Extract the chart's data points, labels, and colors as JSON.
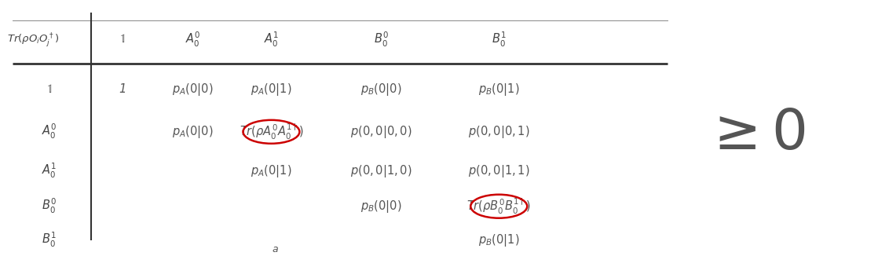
{
  "bg_color": "#ffffff",
  "text_color": "#555555",
  "header_color": "#444444",
  "red_circle_color": "#cc0000",
  "geq_color": "#555555",
  "col_header": [
    "$\\mathbb{1}$",
    "$A_0^0$",
    "$A_0^1$",
    "$B_0^0$",
    "$B_0^1$"
  ],
  "row_header": [
    "$\\mathbb{1}$",
    "$A_0^0$",
    "$A_0^1$",
    "$B_0^0$",
    "$B_0^1$"
  ],
  "corner_label": "$Tr(\\rho O_i O_j^\\dagger)$",
  "col_extra": "$\\mathbb{1}$",
  "table_data": [
    [
      "1",
      "$p_A(0|0)$",
      "$p_A(0|1)$",
      "$p_B(0|0)$",
      "$p_B(0|1)$"
    ],
    [
      "",
      "$p_A(0|0)$",
      "$Tr(\\rho A_0^0 A_0^{1\\dagger})$",
      "$p(0,0|0,0)$",
      "$p(0,0|0,1)$"
    ],
    [
      "",
      "",
      "$p_A(0|1)$",
      "$p(0,0|1,0)$",
      "$p(0,0|1,1)$"
    ],
    [
      "",
      "",
      "",
      "$p_B(0|0)$",
      "$Tr(\\rho B_0^0 B_0^{1\\dagger})$"
    ],
    [
      "",
      "",
      "",
      "",
      "$p_B(0|1)$"
    ]
  ],
  "circled_cells": [
    [
      1,
      2
    ],
    [
      3,
      4
    ]
  ],
  "footnote": "$a$",
  "geq_zero": "$\\geq 0$"
}
